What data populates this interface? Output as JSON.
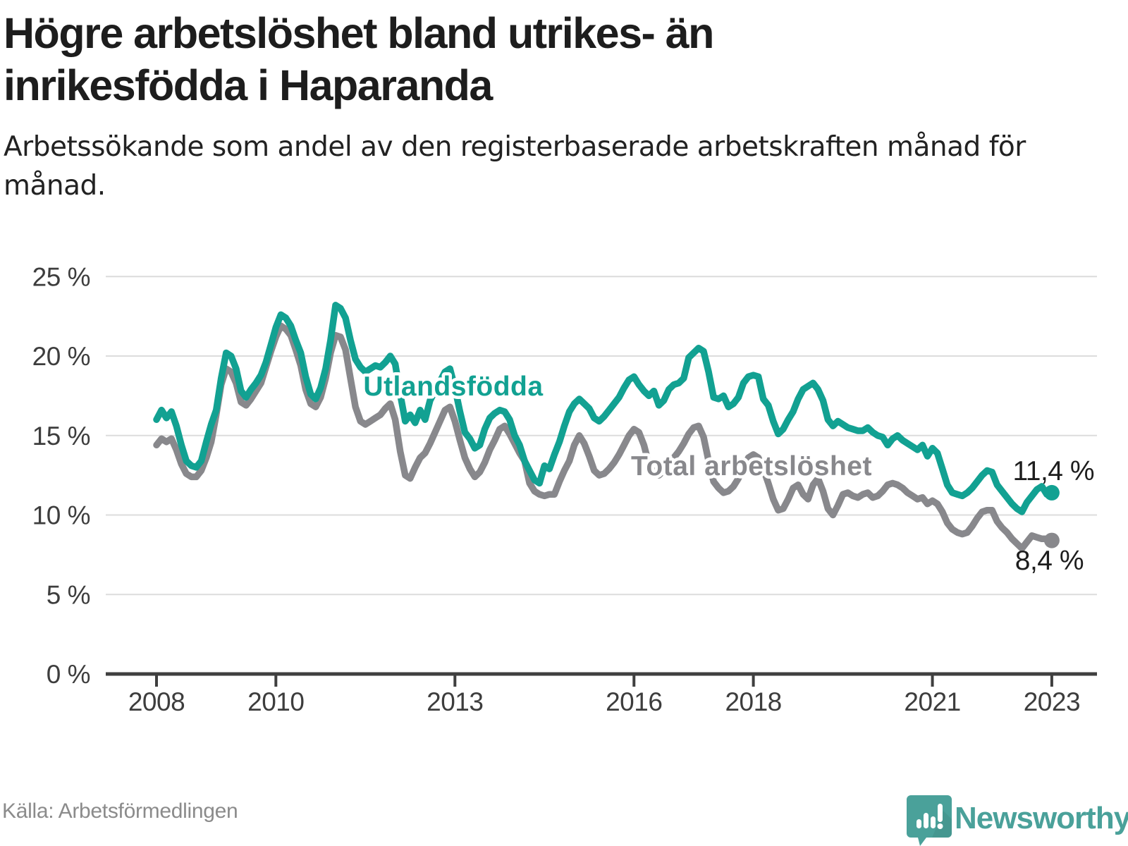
{
  "header": {
    "title": "Högre arbetslöshet bland utrikes- än inrikesfödda i Haparanda",
    "subtitle": "Arbetssökande som andel av den registerbaserade arbetskraften månad för månad."
  },
  "footer": {
    "source": "Källa: Arbetsförmedlingen",
    "brand": "Newsworthy",
    "brand_logo_icon": "speech-bubble-bar-chart-exclamation-icon"
  },
  "colors": {
    "accent_teal": "#12a192",
    "series_gray": "#88888c",
    "grid": "#dcdcdc",
    "axis": "#3f3f3f",
    "axis_text": "#3d3d3d",
    "value_label": "#1d1d1d",
    "brand_teal": "#4aa19a"
  },
  "chart_data": {
    "type": "line",
    "title": "Högre arbetslöshet bland utrikes- än inrikesfödda i Haparanda",
    "xlabel": "",
    "ylabel": "Arbetssökande som andel av den registerbaserade arbetskraften",
    "frequency": "monthly",
    "x_start_year": 2008,
    "x_end_label": "2023-01",
    "ylim": [
      0,
      25
    ],
    "grid": "horizontal",
    "legend_position": "inline-labels",
    "y_ticks": [
      {
        "value": 0,
        "label": "0 %"
      },
      {
        "value": 5,
        "label": "5 %"
      },
      {
        "value": 10,
        "label": "10 %"
      },
      {
        "value": 15,
        "label": "15 %"
      },
      {
        "value": 20,
        "label": "20 %"
      },
      {
        "value": 25,
        "label": "25 %"
      }
    ],
    "x_ticks": [
      {
        "value": 2008,
        "label": "2008"
      },
      {
        "value": 2010,
        "label": "2010"
      },
      {
        "value": 2013,
        "label": "2013"
      },
      {
        "value": 2016,
        "label": "2016"
      },
      {
        "value": 2018,
        "label": "2018"
      },
      {
        "value": 2021,
        "label": "2021"
      },
      {
        "value": 2023,
        "label": "2023"
      }
    ],
    "series": [
      {
        "name": "Total arbetslöshet",
        "color": "#88888c",
        "end_label": "8,4 %",
        "values": [
          14.4,
          14.8,
          14.6,
          14.8,
          14.1,
          13.2,
          12.6,
          12.4,
          12.4,
          12.8,
          13.6,
          14.6,
          16.3,
          18.2,
          19.2,
          19.0,
          18.3,
          17.1,
          16.9,
          17.3,
          17.8,
          18.3,
          19.3,
          20.3,
          21.2,
          21.9,
          21.7,
          21.3,
          20.4,
          19.4,
          17.9,
          17.0,
          16.8,
          17.4,
          18.6,
          20.2,
          21.3,
          21.2,
          20.4,
          18.6,
          16.8,
          15.9,
          15.7,
          15.9,
          16.1,
          16.3,
          16.7,
          17.0,
          16.0,
          14.0,
          12.5,
          12.3,
          13.0,
          13.6,
          13.9,
          14.5,
          15.2,
          15.9,
          16.6,
          16.8,
          15.9,
          14.7,
          13.6,
          12.9,
          12.4,
          12.7,
          13.3,
          14.1,
          14.7,
          15.4,
          15.6,
          15.1,
          14.5,
          13.9,
          13.4,
          12.0,
          11.5,
          11.3,
          11.2,
          11.3,
          11.3,
          12.1,
          12.8,
          13.4,
          14.4,
          15.0,
          14.5,
          13.7,
          12.8,
          12.5,
          12.6,
          12.9,
          13.3,
          13.8,
          14.4,
          15.0,
          15.4,
          15.2,
          14.4,
          13.2,
          12.6,
          12.5,
          12.8,
          13.2,
          13.6,
          14.0,
          14.5,
          15.1,
          15.5,
          15.6,
          14.9,
          13.4,
          12.1,
          11.7,
          11.4,
          11.5,
          11.8,
          12.3,
          13.0,
          13.6,
          13.8,
          13.6,
          12.9,
          12.0,
          11.0,
          10.3,
          10.4,
          11.0,
          11.7,
          11.9,
          11.3,
          11.0,
          11.9,
          12.3,
          11.5,
          10.4,
          10.0,
          10.6,
          11.3,
          11.4,
          11.2,
          11.1,
          11.3,
          11.4,
          11.1,
          11.2,
          11.5,
          11.9,
          12.0,
          11.9,
          11.7,
          11.4,
          11.2,
          11.0,
          11.1,
          10.7,
          10.9,
          10.7,
          10.2,
          9.5,
          9.1,
          8.9,
          8.8,
          8.9,
          9.3,
          9.8,
          10.2,
          10.3,
          10.3,
          9.6,
          9.2,
          8.9,
          8.5,
          8.2,
          7.9,
          8.3,
          8.7,
          8.6,
          8.5,
          8.5,
          8.4
        ]
      },
      {
        "name": "Utlandsfödda",
        "color": "#12a192",
        "end_label": "11,4 %",
        "values": [
          16.0,
          16.6,
          16.1,
          16.5,
          15.6,
          14.4,
          13.4,
          13.1,
          13.0,
          13.4,
          14.6,
          15.7,
          16.6,
          18.6,
          20.2,
          20.0,
          19.2,
          17.8,
          17.4,
          17.9,
          18.3,
          18.8,
          19.6,
          20.7,
          21.8,
          22.6,
          22.4,
          21.9,
          21.0,
          20.2,
          18.7,
          17.6,
          17.3,
          18.0,
          19.2,
          21.0,
          23.2,
          23.0,
          22.4,
          21.0,
          19.8,
          19.3,
          19.0,
          19.2,
          19.4,
          19.3,
          19.6,
          20.0,
          19.5,
          17.6,
          15.9,
          16.3,
          15.8,
          16.6,
          16.0,
          17.2,
          17.8,
          18.4,
          19.0,
          19.2,
          18.0,
          16.5,
          15.2,
          14.8,
          14.2,
          14.4,
          15.4,
          16.1,
          16.4,
          16.6,
          16.5,
          16.0,
          15.0,
          14.4,
          13.4,
          12.8,
          12.2,
          12.0,
          13.1,
          12.9,
          13.8,
          14.6,
          15.6,
          16.5,
          17.0,
          17.3,
          17.0,
          16.7,
          16.1,
          15.9,
          16.2,
          16.6,
          17.0,
          17.4,
          18.0,
          18.5,
          18.7,
          18.2,
          17.8,
          17.5,
          17.8,
          16.9,
          17.2,
          17.9,
          18.2,
          18.3,
          18.6,
          19.9,
          20.2,
          20.5,
          20.3,
          19.0,
          17.4,
          17.3,
          17.5,
          16.8,
          17.0,
          17.4,
          18.3,
          18.7,
          18.8,
          18.7,
          17.3,
          16.9,
          15.9,
          15.1,
          15.4,
          16.0,
          16.5,
          17.3,
          17.9,
          18.1,
          18.3,
          17.9,
          17.2,
          16.0,
          15.6,
          15.9,
          15.7,
          15.5,
          15.4,
          15.3,
          15.3,
          15.5,
          15.2,
          15.0,
          14.9,
          14.4,
          14.8,
          15.0,
          14.7,
          14.5,
          14.3,
          14.1,
          14.4,
          13.7,
          14.2,
          13.9,
          12.9,
          11.9,
          11.4,
          11.3,
          11.2,
          11.4,
          11.7,
          12.1,
          12.5,
          12.8,
          12.7,
          11.9,
          11.5,
          11.1,
          10.7,
          10.4,
          10.2,
          10.8,
          11.2,
          11.6,
          11.8,
          11.3,
          11.4
        ]
      }
    ]
  }
}
